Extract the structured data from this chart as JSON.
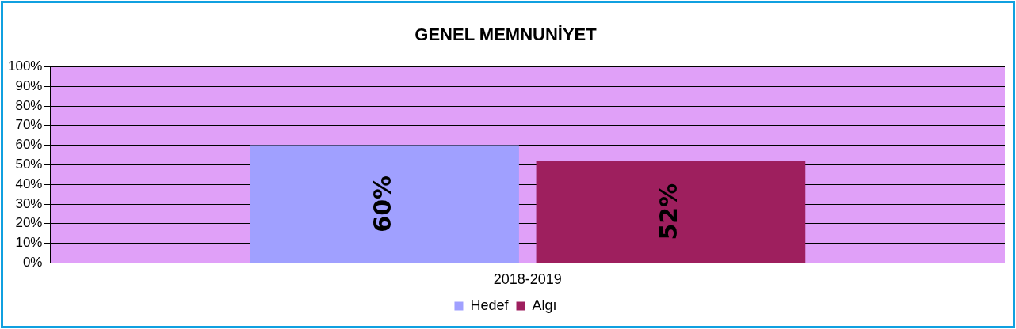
{
  "chart_data": {
    "type": "bar",
    "title": "GENEL MEMNUNİYET",
    "categories": [
      "2018-2019"
    ],
    "series": [
      {
        "name": "Hedef",
        "color": "#a0a0ff",
        "values": [
          60
        ],
        "value_labels": [
          "60%"
        ]
      },
      {
        "name": "Algı",
        "color": "#9e1f5e",
        "values": [
          52
        ],
        "value_labels": [
          "52%"
        ]
      }
    ],
    "ylim": [
      0,
      100
    ],
    "yticks": [
      {
        "value": 0,
        "label": "0%"
      },
      {
        "value": 10,
        "label": "10%"
      },
      {
        "value": 20,
        "label": "20%"
      },
      {
        "value": 30,
        "label": "30%"
      },
      {
        "value": 40,
        "label": "40%"
      },
      {
        "value": 50,
        "label": "50%"
      },
      {
        "value": 60,
        "label": "60%"
      },
      {
        "value": 70,
        "label": "70%"
      },
      {
        "value": 80,
        "label": "80%"
      },
      {
        "value": 90,
        "label": "90%"
      },
      {
        "value": 100,
        "label": "100%"
      }
    ],
    "grid": "y",
    "legend": "bottom"
  }
}
